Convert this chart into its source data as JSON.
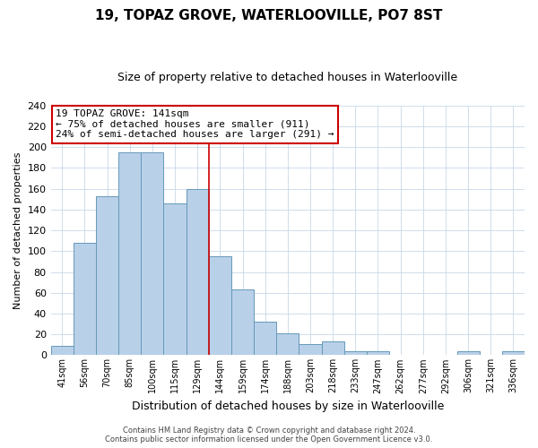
{
  "title": "19, TOPAZ GROVE, WATERLOOVILLE, PO7 8ST",
  "subtitle": "Size of property relative to detached houses in Waterlooville",
  "xlabel": "Distribution of detached houses by size in Waterlooville",
  "ylabel": "Number of detached properties",
  "bar_labels": [
    "41sqm",
    "56sqm",
    "70sqm",
    "85sqm",
    "100sqm",
    "115sqm",
    "129sqm",
    "144sqm",
    "159sqm",
    "174sqm",
    "188sqm",
    "203sqm",
    "218sqm",
    "233sqm",
    "247sqm",
    "262sqm",
    "277sqm",
    "292sqm",
    "306sqm",
    "321sqm",
    "336sqm"
  ],
  "bar_heights": [
    9,
    108,
    153,
    195,
    195,
    146,
    160,
    95,
    63,
    32,
    21,
    11,
    13,
    4,
    4,
    0,
    0,
    0,
    4,
    0,
    4
  ],
  "bar_color": "#b8d0e8",
  "bar_edge_color": "#6699bb",
  "vline_x_index": 6.5,
  "vline_color": "#cc0000",
  "ylim": [
    0,
    240
  ],
  "yticks": [
    0,
    20,
    40,
    60,
    80,
    100,
    120,
    140,
    160,
    180,
    200,
    220,
    240
  ],
  "annotation_title": "19 TOPAZ GROVE: 141sqm",
  "annotation_line1": "← 75% of detached houses are smaller (911)",
  "annotation_line2": "24% of semi-detached houses are larger (291) →",
  "annotation_box_color": "#ffffff",
  "annotation_box_edge": "#cc0000",
  "footer_line1": "Contains HM Land Registry data © Crown copyright and database right 2024.",
  "footer_line2": "Contains public sector information licensed under the Open Government Licence v3.0.",
  "background_color": "#ffffff",
  "grid_color": "#c8d8e8"
}
